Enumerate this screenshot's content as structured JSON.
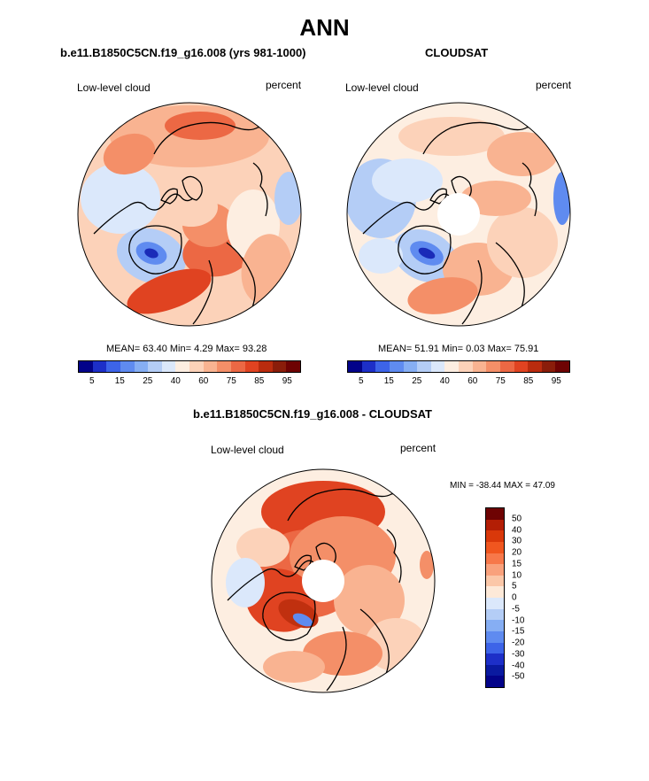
{
  "main_title": "ANN",
  "chart_data": [
    {
      "type": "heatmap",
      "projection": "north-polar-stereographic",
      "title": "b.e11.B1850C5CN.f19_g16.008 (yrs 981-1000)",
      "variable_label": "Low-level cloud",
      "units_label": "percent",
      "stats": {
        "mean_label": "MEAN=",
        "mean": "63.40",
        "min_label": "Min=",
        "min": "4.29",
        "max_label": "Max=",
        "max": "93.28"
      },
      "colorbar": {
        "tick_labels": [
          "5",
          "15",
          "25",
          "40",
          "60",
          "75",
          "85",
          "95"
        ],
        "colors": [
          "#030389",
          "#1d2fc8",
          "#3d64e8",
          "#5f8bf0",
          "#86aef3",
          "#b4cdf6",
          "#dbe8fb",
          "#fdeee1",
          "#fcd2b9",
          "#f9b391",
          "#f48f68",
          "#ec6844",
          "#e04321",
          "#ba2c0e",
          "#8a1d0a",
          "#6e0303"
        ]
      },
      "has_polar_hole": false
    },
    {
      "type": "heatmap",
      "projection": "north-polar-stereographic",
      "title": "CLOUDSAT",
      "variable_label": "Low-level cloud",
      "units_label": "percent",
      "stats": {
        "mean_label": "MEAN=",
        "mean": "51.91",
        "min_label": "Min=",
        "min": "0.03",
        "max_label": "Max=",
        "max": "75.91"
      },
      "colorbar": {
        "tick_labels": [
          "5",
          "15",
          "25",
          "40",
          "60",
          "75",
          "85",
          "95"
        ],
        "colors": [
          "#030389",
          "#1d2fc8",
          "#3d64e8",
          "#5f8bf0",
          "#86aef3",
          "#b4cdf6",
          "#dbe8fb",
          "#fdeee1",
          "#fcd2b9",
          "#f9b391",
          "#f48f68",
          "#ec6844",
          "#e04321",
          "#ba2c0e",
          "#8a1d0a",
          "#6e0303"
        ]
      },
      "has_polar_hole": true
    },
    {
      "type": "heatmap",
      "projection": "north-polar-stereographic",
      "title": "b.e11.B1850C5CN.f19_g16.008 - CLOUDSAT",
      "variable_label": "Low-level cloud",
      "units_label": "percent",
      "range_text": "MIN = -38.44 MAX =  47.09",
      "colorbar": {
        "tick_labels": [
          "50",
          "40",
          "30",
          "20",
          "15",
          "10",
          "5",
          "0",
          "-5",
          "-10",
          "-15",
          "-20",
          "-30",
          "-40",
          "-50"
        ],
        "colors": [
          "#6e0303",
          "#b31e05",
          "#d9380a",
          "#f0561f",
          "#f7784a",
          "#f9a17c",
          "#fbc7a8",
          "#fde9d8",
          "#dbe8fb",
          "#b4cdf6",
          "#86aef3",
          "#5f8bf0",
          "#3d64e8",
          "#1d2fc8",
          "#0a1aa0",
          "#030389"
        ]
      },
      "has_polar_hole": true
    }
  ]
}
